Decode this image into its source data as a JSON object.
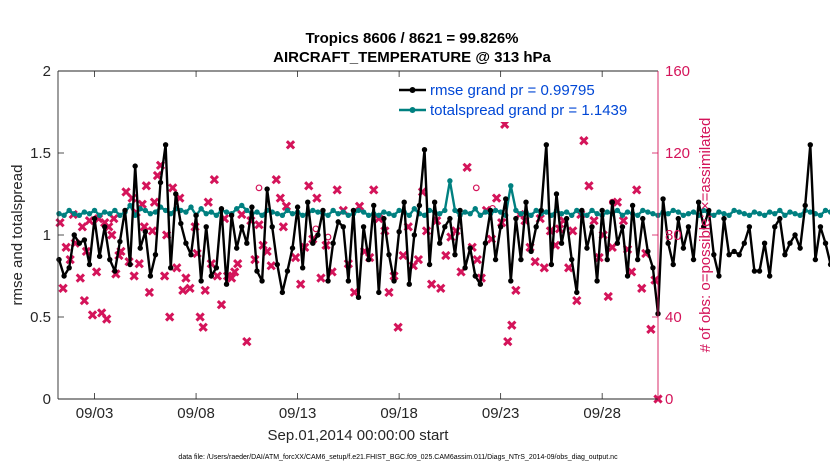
{
  "chart_data": {
    "type": "line",
    "title_line1": "Tropics 8606 / 8621 = 99.826%",
    "title_line2": "AIRCRAFT_TEMPERATURE @ 313 hPa",
    "xlabel": "Sep.01,2014 00:00:00 start",
    "ylabel_left": "rmse and totalspread",
    "ylabel_right": "# of obs: o=possible; ×=assimilated",
    "footnote": "data file: /Users/raeder/DAI/ATM_forcXX/CAM6_setup/f.e21.FHIST_BGC.f09_025.CAM6assim.011/Diags_NTrS_2014-09/obs_diag_output.nc",
    "x_range_days": [
      1.2,
      30.75
    ],
    "ylim_left": [
      0,
      2
    ],
    "ylim_right": [
      0,
      160
    ],
    "yticks_left": [
      "0",
      "0.5",
      "1",
      "1.5",
      "2"
    ],
    "yticks_left_values": [
      0,
      0.5,
      1,
      1.5,
      2
    ],
    "yticks_right": [
      "0",
      "40",
      "80",
      "120",
      "160"
    ],
    "yticks_right_values": [
      0,
      40,
      80,
      120,
      160
    ],
    "xticks": [
      "09/03",
      "09/08",
      "09/13",
      "09/18",
      "09/23",
      "09/28"
    ],
    "xticks_values": [
      3,
      8,
      13,
      18,
      23,
      28
    ],
    "x_start_day": 1.25,
    "x_step_days": 0.25,
    "colors": {
      "rmse": "#000000",
      "spread": "#008080",
      "obs": "#d4145a",
      "legend_text": "#0047d6"
    },
    "legend": [
      "rmse grand pr = 0.99795",
      "totalspread grand pr = 1.1439"
    ],
    "series": [
      {
        "name": "rmse grand pr = 0.99795",
        "axis": "left",
        "values": [
          0.85,
          0.75,
          0.8,
          1.0,
          0.95,
          0.97,
          0.82,
          1.1,
          0.87,
          1.05,
          0.85,
          0.78,
          0.96,
          1.15,
          0.82,
          1.42,
          0.92,
          1.02,
          0.75,
          0.88,
          1.32,
          1.55,
          0.8,
          1.25,
          1.07,
          0.95,
          0.88,
          1.12,
          0.72,
          1.05,
          0.75,
          0.8,
          1.16,
          0.7,
          1.12,
          0.92,
          1.05,
          0.95,
          1.17,
          0.78,
          0.72,
          1.28,
          1.05,
          0.82,
          0.65,
          0.78,
          0.92,
          1.17,
          0.8,
          1.2,
          0.95,
          1.0,
          1.15,
          0.72,
          0.95,
          1.08,
          1.05,
          0.72,
          1.15,
          0.62,
          1.05,
          0.85,
          1.18,
          0.65,
          1.1,
          0.88,
          0.72,
          1.02,
          1.2,
          0.7,
          1.0,
          1.18,
          1.52,
          0.82,
          1.2,
          0.95,
          1.05,
          1.1,
          0.88,
          1.15,
          0.8,
          0.92,
          0.75,
          0.7,
          0.95,
          1.15,
          0.85,
          1.05,
          1.22,
          0.72,
          1.1,
          0.85,
          1.2,
          0.9,
          1.05,
          1.15,
          1.55,
          0.82,
          1.25,
          0.95,
          1.1,
          0.85,
          0.65,
          1.15,
          0.92,
          1.05,
          0.72,
          1.15,
          0.85,
          1.2,
          0.95,
          1.05,
          0.75,
          1.18,
          0.85,
          1.1,
          0.9,
          0.8,
          0.52,
          1.22,
          0.95,
          0.82,
          1.1,
          0.92,
          1.05,
          0.85,
          1.2,
          1.05,
          1.15,
          0.88,
          0.75,
          1.1,
          0.88,
          0.9,
          0.88,
          0.95,
          1.05,
          0.78,
          0.78,
          0.95,
          0.75,
          1.05,
          1.1,
          0.88,
          0.95,
          1.0,
          0.92,
          1.18,
          1.55,
          0.85,
          1.05,
          0.95,
          0.82,
          0.75,
          1.15,
          0.88,
          1.05,
          1.12,
          0.8,
          0.7,
          0.95,
          1.0
        ]
      },
      {
        "name": "totalspread grand pr = 1.1439",
        "axis": "left",
        "values": [
          1.13,
          1.12,
          1.15,
          1.13,
          1.12,
          1.14,
          1.13,
          1.15,
          1.12,
          1.14,
          1.13,
          1.15,
          1.12,
          1.14,
          1.18,
          1.12,
          1.16,
          1.15,
          1.13,
          1.14,
          1.17,
          1.15,
          1.13,
          1.16,
          1.15,
          1.14,
          1.17,
          1.12,
          1.16,
          1.13,
          1.14,
          1.12,
          1.15,
          1.14,
          1.13,
          1.16,
          1.18,
          1.15,
          1.13,
          1.14,
          1.12,
          1.15,
          1.14,
          1.13,
          1.12,
          1.15,
          1.13,
          1.14,
          1.12,
          1.13,
          1.15,
          1.14,
          1.13,
          1.12,
          1.15,
          1.13,
          1.14,
          1.12,
          1.13,
          1.15,
          1.14,
          1.12,
          1.13,
          1.12,
          1.14,
          1.13,
          1.12,
          1.15,
          1.14,
          1.12,
          1.16,
          1.13,
          1.12,
          1.15,
          1.14,
          1.13,
          1.15,
          1.33,
          1.15,
          1.12,
          1.14,
          1.13,
          1.16,
          1.12,
          1.14,
          1.13,
          1.15,
          1.14,
          1.12,
          1.3,
          1.15,
          1.13,
          1.14,
          1.12,
          1.15,
          1.13,
          1.14,
          1.12,
          1.15,
          1.13,
          1.14,
          1.12,
          1.15,
          1.13,
          1.12,
          1.15,
          1.13,
          1.12,
          1.14,
          1.13,
          1.15,
          1.12,
          1.14,
          1.13,
          1.12,
          1.15,
          1.14,
          1.13,
          1.12,
          1.14,
          1.13,
          1.15,
          1.14,
          1.12,
          1.13,
          1.14,
          1.12,
          1.15,
          1.13,
          1.12,
          1.14,
          1.13,
          1.12,
          1.15,
          1.14,
          1.13,
          1.12,
          1.14,
          1.13,
          1.12,
          1.14,
          1.13,
          1.15,
          1.12,
          1.14,
          1.13,
          1.12,
          1.15,
          1.14,
          1.13,
          1.12,
          1.15,
          1.14,
          1.13,
          1.12,
          1.15,
          1.14,
          1.13,
          1.12,
          1.15,
          1.14,
          1.17,
          1.19,
          1.15,
          1.13,
          1.12
        ]
      },
      {
        "name": "# of obs assimilated",
        "axis": "right",
        "marker": "x",
        "points": [
          [
            1.3,
            86
          ],
          [
            1.45,
            54
          ],
          [
            1.6,
            74
          ],
          [
            1.8,
            68
          ],
          [
            1.95,
            90
          ],
          [
            2.05,
            76
          ],
          [
            2.3,
            59
          ],
          [
            2.4,
            84
          ],
          [
            2.5,
            48
          ],
          [
            2.6,
            72
          ],
          [
            2.75,
            87
          ],
          [
            2.9,
            41
          ],
          [
            3.1,
            62
          ],
          [
            3.2,
            88
          ],
          [
            3.35,
            42
          ],
          [
            3.5,
            86
          ],
          [
            3.6,
            39
          ],
          [
            3.7,
            84
          ],
          [
            3.85,
            80
          ],
          [
            3.95,
            88
          ],
          [
            4.05,
            61
          ],
          [
            4.2,
            70
          ],
          [
            4.3,
            72
          ],
          [
            4.55,
            101
          ],
          [
            4.7,
            67
          ],
          [
            4.85,
            98
          ],
          [
            4.95,
            60
          ],
          [
            5.05,
            91
          ],
          [
            5.2,
            66
          ],
          [
            5.35,
            95
          ],
          [
            5.45,
            84
          ],
          [
            5.55,
            104
          ],
          [
            5.7,
            52
          ],
          [
            5.85,
            82
          ],
          [
            5.95,
            96
          ],
          [
            6.1,
            109
          ],
          [
            6.25,
            114
          ],
          [
            6.45,
            60
          ],
          [
            6.55,
            80
          ],
          [
            6.7,
            40
          ],
          [
            6.85,
            103
          ],
          [
            7.05,
            64
          ],
          [
            7.2,
            98
          ],
          [
            7.35,
            53
          ],
          [
            7.5,
            59
          ],
          [
            7.7,
            54
          ],
          [
            7.95,
            84
          ],
          [
            8.05,
            71
          ],
          [
            8.2,
            40
          ],
          [
            8.35,
            35
          ],
          [
            8.45,
            53
          ],
          [
            8.6,
            96
          ],
          [
            8.75,
            66
          ],
          [
            8.9,
            107
          ],
          [
            9.05,
            60
          ],
          [
            9.25,
            46
          ],
          [
            9.4,
            88
          ],
          [
            9.55,
            60
          ],
          [
            9.75,
            59
          ],
          [
            9.9,
            62
          ],
          [
            10.05,
            66
          ],
          [
            10.25,
            90
          ],
          [
            10.5,
            28
          ],
          [
            10.7,
            87
          ],
          [
            10.9,
            68
          ],
          [
            11.1,
            85
          ],
          [
            11.3,
            75
          ],
          [
            11.5,
            72
          ],
          [
            11.7,
            65
          ],
          [
            11.95,
            107
          ],
          [
            12.15,
            98
          ],
          [
            12.3,
            84
          ],
          [
            12.45,
            94
          ],
          [
            12.65,
            124
          ],
          [
            12.9,
            69
          ],
          [
            13.15,
            56
          ],
          [
            13.35,
            74
          ],
          [
            13.55,
            104
          ],
          [
            13.75,
            78
          ],
          [
            13.95,
            98
          ],
          [
            14.15,
            59
          ],
          [
            14.4,
            75
          ],
          [
            14.7,
            62
          ],
          [
            14.95,
            102
          ],
          [
            15.25,
            92
          ],
          [
            15.5,
            66
          ],
          [
            15.8,
            52
          ],
          [
            16.05,
            94
          ],
          [
            16.3,
            72
          ],
          [
            16.55,
            69
          ],
          [
            16.75,
            102
          ],
          [
            17.0,
            88
          ],
          [
            17.3,
            82
          ],
          [
            17.5,
            52
          ],
          [
            17.75,
            60
          ],
          [
            17.95,
            35
          ],
          [
            18.2,
            70
          ],
          [
            18.45,
            84
          ],
          [
            18.7,
            65
          ],
          [
            18.95,
            68
          ],
          [
            19.15,
            101
          ],
          [
            19.35,
            82
          ],
          [
            19.6,
            56
          ],
          [
            19.85,
            87
          ],
          [
            20.05,
            54
          ],
          [
            20.3,
            70
          ],
          [
            20.55,
            79
          ],
          [
            20.8,
            82
          ],
          [
            21.05,
            62
          ],
          [
            21.35,
            113
          ],
          [
            21.6,
            74
          ],
          [
            21.85,
            68
          ],
          [
            22.05,
            59
          ],
          [
            22.3,
            92
          ],
          [
            22.55,
            78
          ],
          [
            22.8,
            98
          ],
          [
            23.05,
            86
          ],
          [
            23.2,
            134
          ],
          [
            23.35,
            28
          ],
          [
            23.55,
            36
          ],
          [
            23.75,
            53
          ],
          [
            23.95,
            90
          ],
          [
            24.2,
            87
          ],
          [
            24.45,
            74
          ],
          [
            24.7,
            67
          ],
          [
            24.95,
            88
          ],
          [
            25.15,
            64
          ],
          [
            25.45,
            82
          ],
          [
            25.7,
            75
          ],
          [
            25.9,
            83
          ],
          [
            26.1,
            87
          ],
          [
            26.35,
            64
          ],
          [
            26.55,
            82
          ],
          [
            26.75,
            48
          ],
          [
            26.95,
            90
          ],
          [
            27.1,
            126
          ],
          [
            27.35,
            104
          ],
          [
            27.6,
            87
          ],
          [
            27.85,
            69
          ],
          [
            28.05,
            80
          ],
          [
            28.3,
            50
          ],
          [
            28.5,
            74
          ],
          [
            28.75,
            96
          ],
          [
            29.05,
            87
          ],
          [
            29.25,
            73
          ],
          [
            29.45,
            62
          ],
          [
            29.7,
            102
          ],
          [
            29.95,
            54
          ],
          [
            30.15,
            71
          ],
          [
            30.4,
            34
          ],
          [
            30.6,
            58
          ],
          [
            30.75,
            0
          ]
        ]
      },
      {
        "name": "# of obs possible",
        "axis": "right",
        "marker": "o",
        "points": [
          [
            11.1,
            103
          ],
          [
            13.9,
            83
          ],
          [
            21.8,
            103
          ],
          [
            28.5,
            96
          ],
          [
            14.5,
            79
          ],
          [
            22.6,
            93
          ]
        ]
      }
    ]
  }
}
